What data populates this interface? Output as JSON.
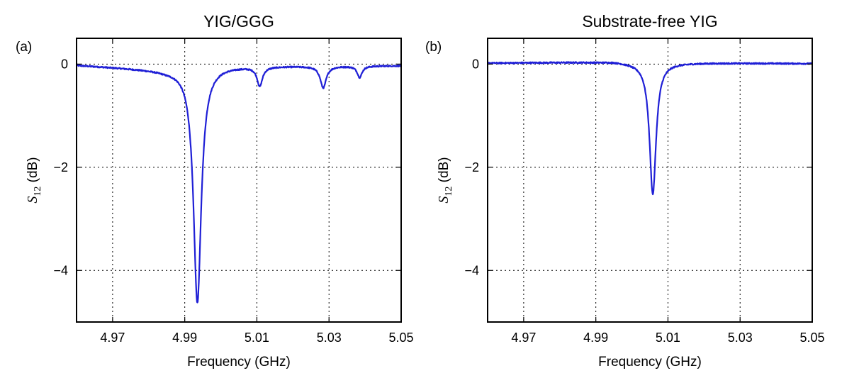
{
  "chart_data": [
    {
      "type": "line",
      "panel_label": "(a)",
      "title": "YIG/GGG",
      "xlabel": "Frequency (GHz)",
      "ylabel": {
        "symbol": "S",
        "subscript": "12",
        "unit": "(dB)"
      },
      "xlim": [
        4.96,
        5.05
      ],
      "ylim": [
        -5.0,
        0.5
      ],
      "xticks": [
        4.97,
        4.99,
        5.01,
        5.03,
        5.05
      ],
      "xtick_labels": [
        "4.97",
        "4.99",
        "5.01",
        "5.03",
        "5.05"
      ],
      "yticks": [
        0,
        -2,
        -4
      ],
      "ytick_labels": [
        "0",
        "−2",
        "−4"
      ],
      "grid": true,
      "color": "#1f1fd6",
      "baseline": {
        "x": [
          4.96,
          4.975,
          4.985,
          5.0,
          5.05
        ],
        "y": [
          -0.02,
          -0.08,
          -0.12,
          -0.04,
          -0.03
        ]
      },
      "dips": [
        {
          "center": 4.9935,
          "depth": 4.55,
          "width": 0.0013
        },
        {
          "center": 5.0108,
          "depth": 0.37,
          "width": 0.0009
        },
        {
          "center": 5.0284,
          "depth": 0.42,
          "width": 0.001
        },
        {
          "center": 5.0385,
          "depth": 0.22,
          "width": 0.0008
        }
      ],
      "annotations": []
    },
    {
      "type": "line",
      "panel_label": "(b)",
      "title": "Substrate-free YIG",
      "xlabel": "Frequency (GHz)",
      "ylabel": {
        "symbol": "S",
        "subscript": "12",
        "unit": "(dB)"
      },
      "xlim": [
        4.96,
        5.05
      ],
      "ylim": [
        -5.0,
        0.5
      ],
      "xticks": [
        4.97,
        4.99,
        5.01,
        5.03,
        5.05
      ],
      "xtick_labels": [
        "4.97",
        "4.99",
        "5.01",
        "5.03",
        "5.05"
      ],
      "yticks": [
        0,
        -2,
        -4
      ],
      "ytick_labels": [
        "0",
        "−2",
        "−4"
      ],
      "grid": true,
      "color": "#1f1fd6",
      "baseline": {
        "x": [
          4.96,
          4.99,
          4.995,
          5.0,
          5.05
        ],
        "y": [
          0.02,
          0.04,
          0.05,
          0.03,
          0.01
        ]
      },
      "dips": [
        {
          "center": 5.0058,
          "depth": 2.55,
          "width": 0.0011
        }
      ],
      "annotations": []
    }
  ]
}
